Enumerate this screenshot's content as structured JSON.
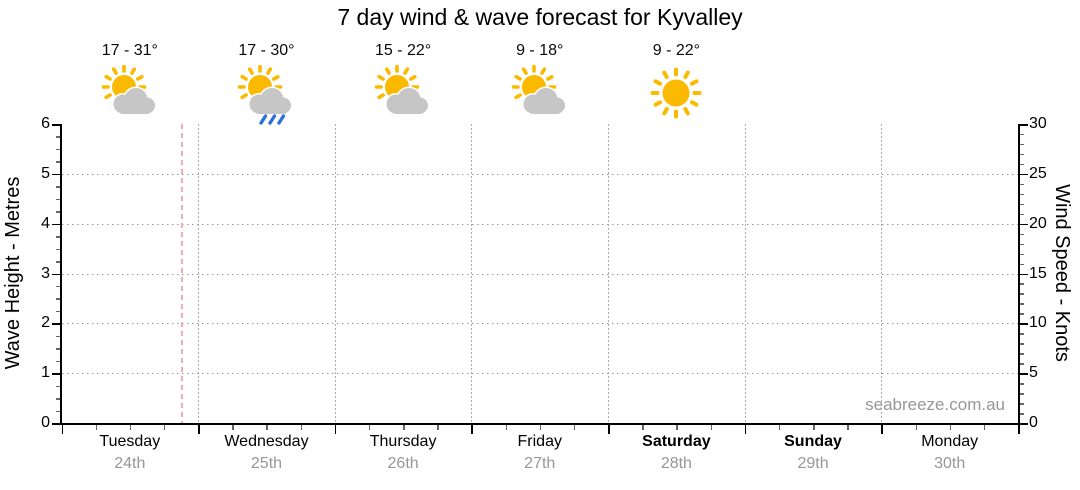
{
  "title": "7 day wind & wave forecast for Kyvalley",
  "watermark": "seabreeze.com.au",
  "axes": {
    "left": {
      "label": "Wave Height - Metres",
      "ticks": [
        "6",
        "5",
        "4",
        "3",
        "2",
        "1",
        "0"
      ]
    },
    "right": {
      "label": "Wind Speed - Knots",
      "ticks": [
        "30",
        "25",
        "20",
        "15",
        "10",
        "5",
        "0"
      ]
    }
  },
  "days": [
    {
      "name": "Tuesday",
      "date": "24th",
      "temp": "17 - 31°",
      "icon": "partly-cloudy",
      "weekend": false
    },
    {
      "name": "Wednesday",
      "date": "25th",
      "temp": "17 - 30°",
      "icon": "partly-cloudy-rain",
      "weekend": false
    },
    {
      "name": "Thursday",
      "date": "26th",
      "temp": "15 - 22°",
      "icon": "partly-cloudy",
      "weekend": false
    },
    {
      "name": "Friday",
      "date": "27th",
      "temp": "9 - 18°",
      "icon": "partly-cloudy",
      "weekend": false
    },
    {
      "name": "Saturday",
      "date": "28th",
      "temp": "9 - 22°",
      "icon": "sunny",
      "weekend": true
    },
    {
      "name": "Sunday",
      "date": "29th",
      "temp": "",
      "icon": "none",
      "weekend": true
    },
    {
      "name": "Monday",
      "date": "30th",
      "temp": "",
      "icon": "none",
      "weekend": false
    }
  ],
  "colors": {
    "sun": "#FBBA00",
    "cloud": "#C6C6C6",
    "cloud_outline": "#FFFFFF",
    "rain": "#2E6FDB",
    "now_line": "#F9AAAA",
    "gridline": "#9E9E9E",
    "muted_text": "#979797",
    "axis": "#000000"
  },
  "chart_data": {
    "type": "line",
    "title": "7 day wind & wave forecast for Kyvalley",
    "categories": [
      "Tuesday 24th",
      "Wednesday 25th",
      "Thursday 26th",
      "Friday 27th",
      "Saturday 28th",
      "Sunday 29th",
      "Monday 30th"
    ],
    "y_left": {
      "label": "Wave Height - Metres",
      "range": [
        0,
        6
      ],
      "tick_step": 1,
      "minor_tick_step": 0.25
    },
    "y_right": {
      "label": "Wind Speed - Knots",
      "range": [
        0,
        30
      ],
      "tick_step": 5,
      "minor_tick_step": 1
    },
    "series": [],
    "grid": {
      "horizontal_at_wave_height": [
        1,
        2,
        3,
        4,
        5
      ],
      "vertical_at_day_boundaries": true
    },
    "annotations": {
      "temperatures": [
        "17 - 31°",
        "17 - 30°",
        "15 - 22°",
        "9 - 18°",
        "9 - 22°",
        "",
        ""
      ],
      "weather_icons": [
        "partly-cloudy",
        "partly-cloudy-rain",
        "partly-cloudy",
        "partly-cloudy",
        "sunny",
        "none",
        "none"
      ],
      "now_marker": {
        "description": "dashed vertical line late on Tuesday",
        "day_index": 0,
        "day_fraction": 0.87
      }
    }
  }
}
